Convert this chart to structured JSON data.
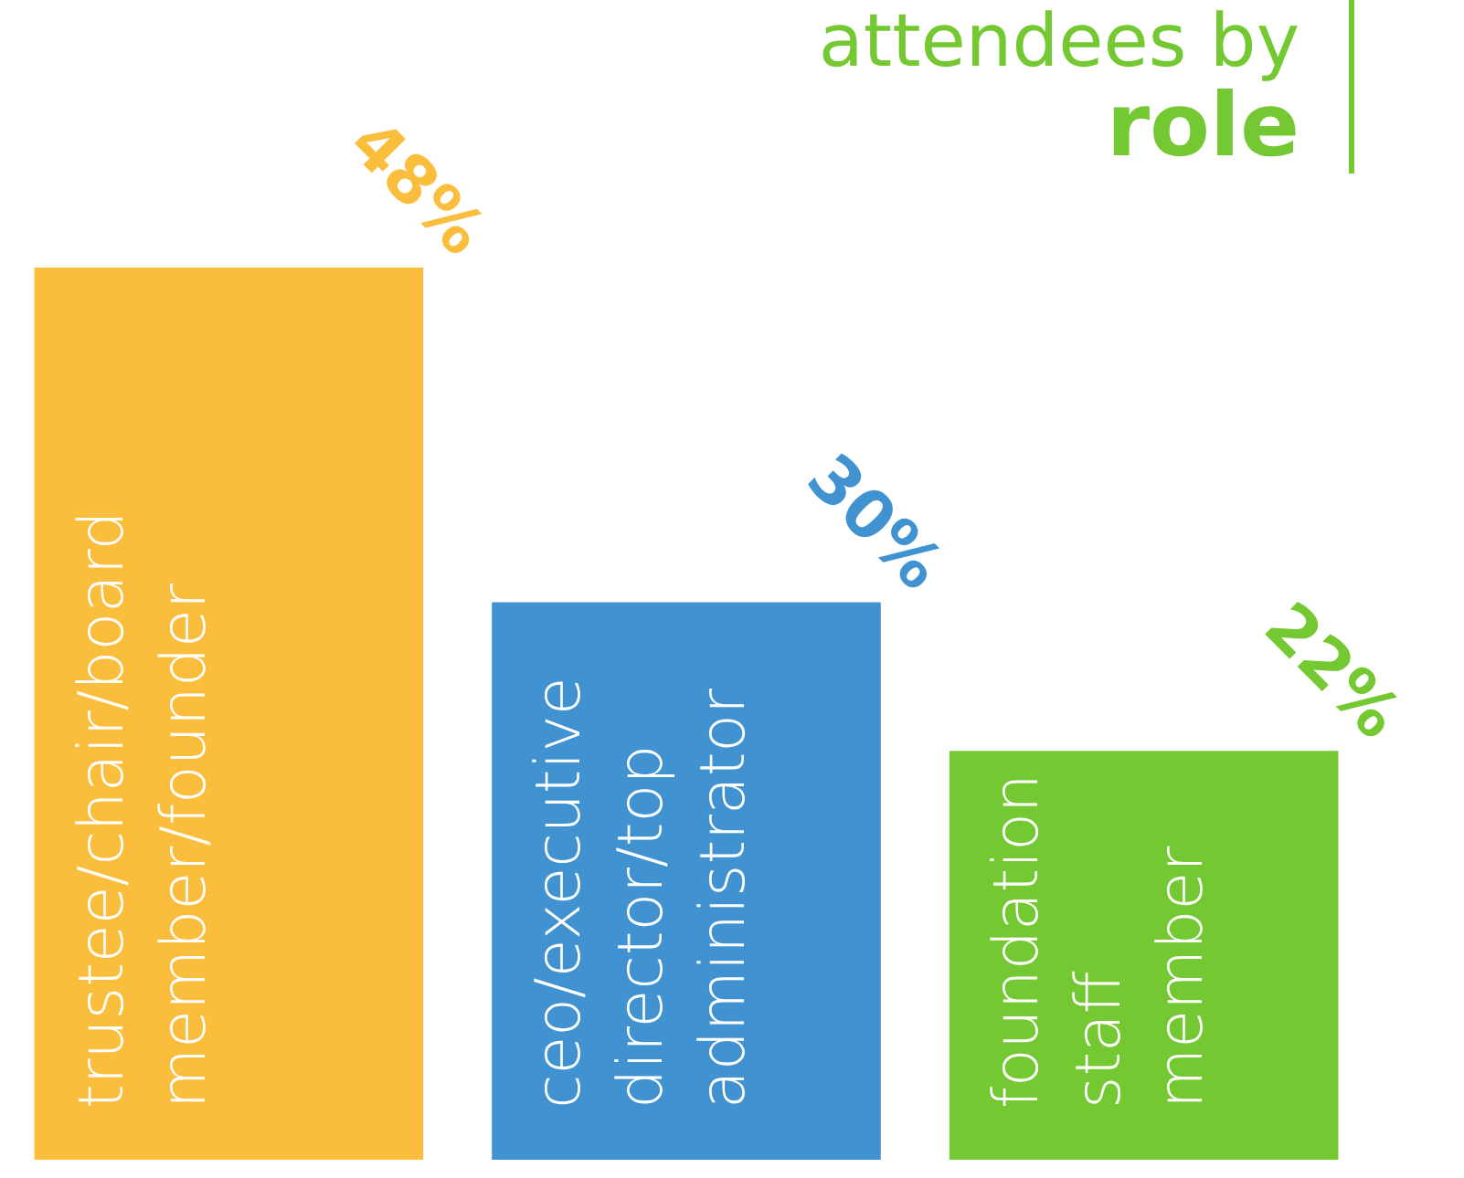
{
  "chart_data": {
    "type": "bar",
    "title": "attendees by role",
    "categories": [
      "trustee/chair/board member/founder",
      "ceo/executive director/top administrator",
      "foundation staff member"
    ],
    "values": [
      48,
      30,
      22
    ],
    "colors": [
      "#fbbd3c",
      "#4192d0",
      "#74c831"
    ],
    "data_labels": true,
    "value_labels": [
      "48%",
      "30%",
      "22%"
    ]
  }
}
